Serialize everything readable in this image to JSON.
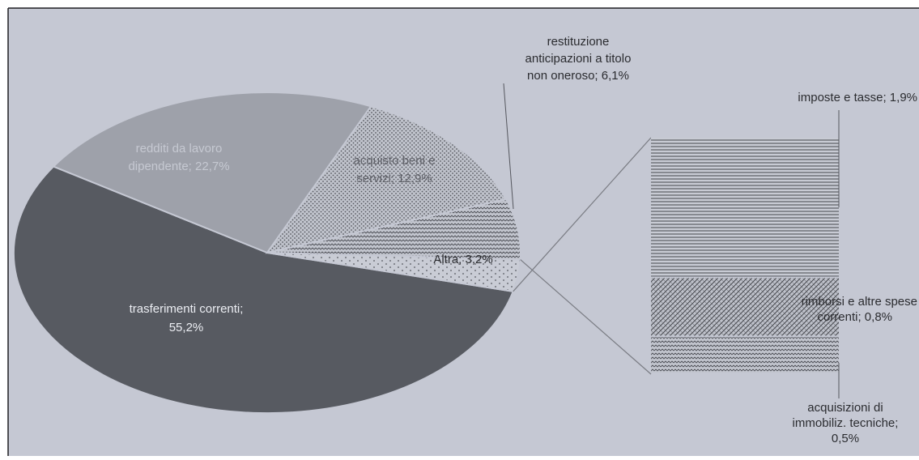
{
  "chart_data": {
    "type": "pie",
    "subtype": "bar-of-pie",
    "slices": [
      {
        "label": "trasferimenti correnti;",
        "label2": "55,2%",
        "value": 55.2,
        "color": "#575a61",
        "pattern": "solid",
        "text_color": "#eceef3"
      },
      {
        "label": "redditi da lavoro",
        "label2": "dipendente; 22,7%",
        "value": 22.7,
        "color": "#9ea1aa",
        "pattern": "solid",
        "text_color": "#c6c9d2"
      },
      {
        "label": "acquisto beni e",
        "label2": "servizi; 12,9%",
        "value": 12.9,
        "color": "#b8bbc4",
        "pattern": "dots",
        "text_color": "#5f6168"
      },
      {
        "label": "restituzione anticipazioni a titolo non oneroso; 6,1%",
        "value": 6.1,
        "color": "#c2c5ce",
        "pattern": "waves",
        "text_color": "#2b2c30"
      },
      {
        "label": "Altra; 3,2%",
        "value": 3.2,
        "color": "#c8cbd4",
        "pattern": "sparse-dots",
        "text_color": "#2b2c30"
      }
    ],
    "breakdown_of": "Altra; 3,2%",
    "breakdown": [
      {
        "label": "imposte e tasse; 1,9%",
        "value": 1.9,
        "pattern": "horizontal-lines"
      },
      {
        "label": "rimborsi e altre spese correnti; 0,8%",
        "value": 0.8,
        "pattern": "diagonal-waves"
      },
      {
        "label": "acquisizioni di immobiliz. tecniche; 0,5%",
        "value": 0.5,
        "pattern": "waves"
      }
    ],
    "background_color": "#c5c8d3"
  },
  "labels": {
    "trasferimenti_l1": "trasferimenti correnti;",
    "trasferimenti_l2": "55,2%",
    "redditi_l1": "redditi da lavoro",
    "redditi_l2": "dipendente; 22,7%",
    "acquisto_l1": "acquisto beni e",
    "acquisto_l2": "servizi; 12,9%",
    "restituzione_l1": "restituzione",
    "restituzione_l2": "anticipazioni a titolo",
    "restituzione_l3": "non oneroso; 6,1%",
    "altra": "Altra; 3,2%",
    "imposte": "imposte e tasse; 1,9%",
    "rimborsi_l1": "rimborsi e altre spese",
    "rimborsi_l2": "correnti; 0,8%",
    "acquisizioni_l1": "acquisizioni di",
    "acquisizioni_l2": "immobiliz. tecniche;",
    "acquisizioni_l3": "0,5%"
  }
}
